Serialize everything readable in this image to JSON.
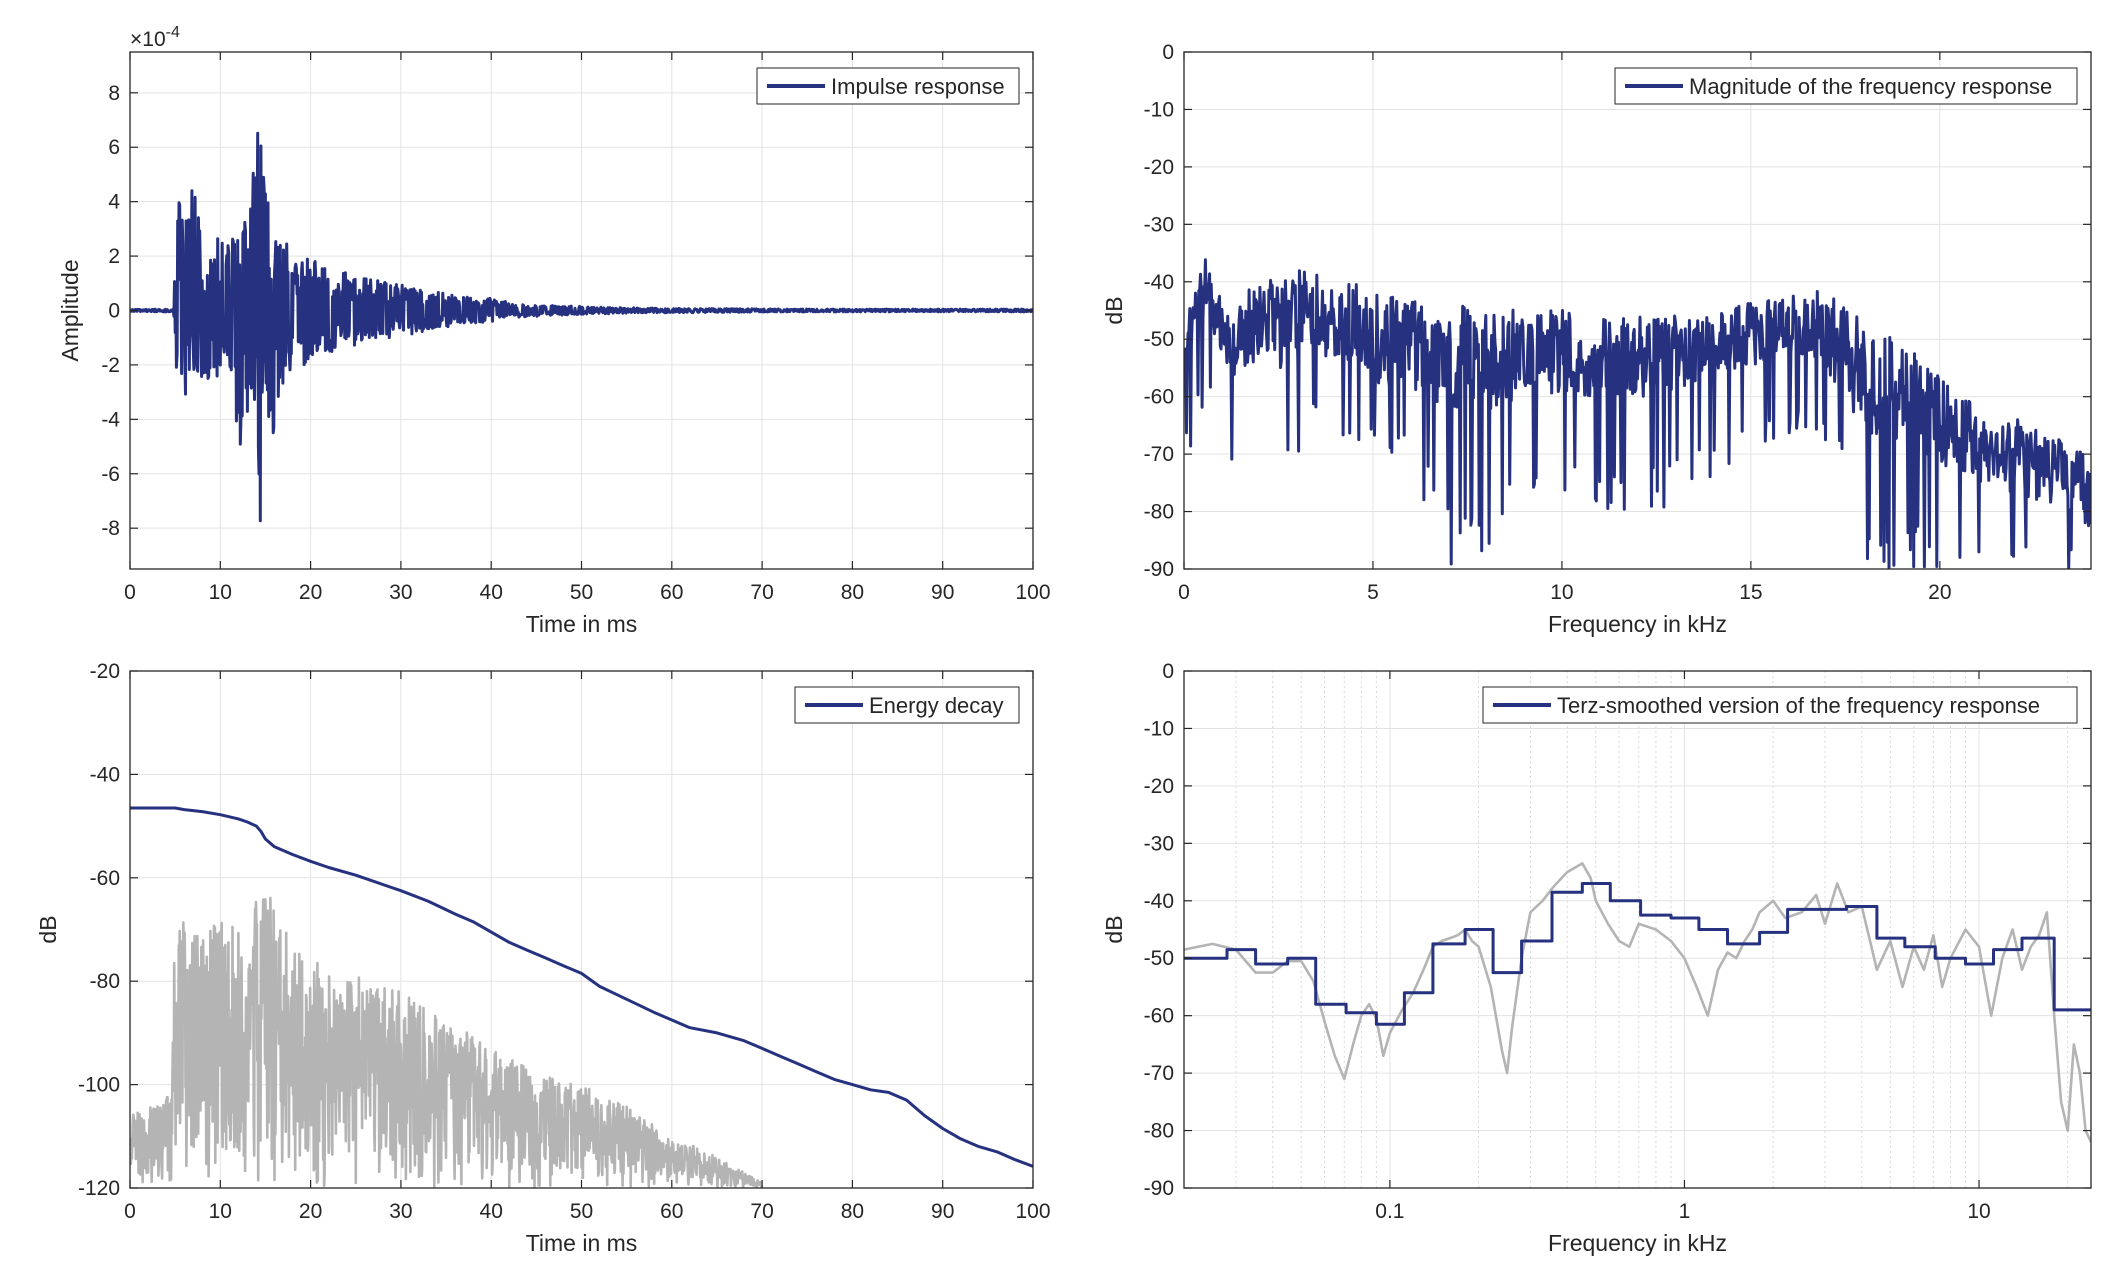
{
  "colors": {
    "primary": "#26317f",
    "secondary": "#b4b4b4",
    "grid": "#e3e3e3",
    "axis": "#262626"
  },
  "chart_data": [
    {
      "type": "line",
      "xlabel": "Time in ms",
      "ylabel": "Amplitude",
      "exponent": "×10",
      "exponent_power": "-4",
      "xlim": [
        0,
        100
      ],
      "ylim": [
        -9.5,
        9.5
      ],
      "xticks": [
        0,
        10,
        20,
        30,
        40,
        50,
        60,
        70,
        80,
        90,
        100
      ],
      "xtick_labels": [
        "0",
        "10",
        "20",
        "30",
        "40",
        "50",
        "60",
        "70",
        "80",
        "90",
        "100"
      ],
      "yticks": [
        -8,
        -6,
        -4,
        -2,
        0,
        2,
        4,
        6,
        8
      ],
      "ytick_labels": [
        "-8",
        "-6",
        "-4",
        "-2",
        "0",
        "2",
        "4",
        "6",
        "8"
      ],
      "grid": true,
      "legend_position": "top-right",
      "series": [
        {
          "name": "Impulse response",
          "color": "#26317f",
          "envelope": {
            "x": [
              0,
              4.8,
              5.2,
              6,
              7,
              8,
              9,
              10,
              11,
              12,
              13,
              14,
              14.5,
              15,
              16,
              17,
              18,
              20,
              22,
              25,
              28,
              31,
              34,
              37,
              40,
              43,
              46,
              50,
              55,
              60,
              70,
              80,
              90,
              100
            ],
            "upper": [
              0.05,
              0.05,
              4.4,
              3.5,
              4.7,
              2.5,
              2.4,
              3.1,
              2.4,
              3.3,
              4.5,
              7.6,
              6.5,
              4.3,
              4.0,
              2.7,
              2.0,
              1.9,
              1.6,
              1.3,
              1.1,
              0.9,
              0.7,
              0.5,
              0.45,
              0.25,
              0.2,
              0.15,
              0.1,
              0.08,
              0.06,
              0.05,
              0.05,
              0.05
            ],
            "lower": [
              -0.05,
              -0.05,
              -2.6,
              -3.6,
              -2.3,
              -2.5,
              -3.0,
              -2.3,
              -2.7,
              -5.2,
              -4.0,
              -4.2,
              -8.6,
              -6.2,
              -4.5,
              -2.6,
              -2.2,
              -1.9,
              -1.6,
              -1.3,
              -1.1,
              -0.9,
              -0.7,
              -0.5,
              -0.45,
              -0.25,
              -0.2,
              -0.15,
              -0.1,
              -0.08,
              -0.06,
              -0.05,
              -0.05,
              -0.05
            ]
          }
        }
      ]
    },
    {
      "type": "line",
      "xlabel": "Frequency in kHz",
      "ylabel": "dB",
      "xlim": [
        0,
        24
      ],
      "ylim": [
        -90,
        0
      ],
      "xticks": [
        0,
        5,
        10,
        15,
        20
      ],
      "xtick_labels": [
        "0",
        "5",
        "10",
        "15",
        "20"
      ],
      "yticks": [
        0,
        -10,
        -20,
        -30,
        -40,
        -50,
        -60,
        -70,
        -80,
        -90
      ],
      "ytick_labels": [
        "0",
        "-10",
        "-20",
        "-30",
        "-40",
        "-50",
        "-60",
        "-70",
        "-80",
        "-90"
      ],
      "grid": true,
      "legend_position": "top-right",
      "series": [
        {
          "name": "Magnitude of the frequency response",
          "color": "#26317f",
          "envelope": {
            "x": [
              0,
              0.3,
              0.5,
              1,
              1.5,
              2,
              2.5,
              3,
              3.5,
              4,
              4.5,
              5,
              6,
              7,
              8,
              9,
              10,
              11,
              12,
              13,
              14,
              15,
              16,
              16.5,
              17,
              17.5,
              18,
              19,
              20,
              21,
              22,
              23,
              24
            ],
            "upper": [
              -46,
              -38,
              -33,
              -42,
              -40,
              -37,
              -38,
              -35,
              -36,
              -40,
              -37,
              -39,
              -41,
              -42,
              -41,
              -43,
              -43,
              -44,
              -44,
              -44,
              -44,
              -42,
              -41,
              -39,
              -40,
              -41,
              -45,
              -48,
              -54,
              -60,
              -62,
              -65,
              -68
            ],
            "lower": [
              -70,
              -68,
              -62,
              -66,
              -90,
              -66,
              -72,
              -74,
              -64,
              -68,
              -70,
              -68,
              -72,
              -90,
              -88,
              -82,
              -76,
              -80,
              -82,
              -78,
              -74,
              -70,
              -68,
              -66,
              -68,
              -76,
              -90,
              -90,
              -90,
              -90,
              -90,
              -90,
              -90
            ],
            "median": [
              -56,
              -48,
              -44,
              -50,
              -56,
              -50,
              -52,
              -50,
              -48,
              -52,
              -50,
              -54,
              -55,
              -58,
              -58,
              -58,
              -56,
              -58,
              -58,
              -56,
              -54,
              -52,
              -51,
              -50,
              -52,
              -58,
              -62,
              -64,
              -68,
              -72,
              -74,
              -76,
              -80
            ]
          }
        }
      ]
    },
    {
      "type": "line",
      "xlabel": "Time in ms",
      "ylabel": "dB",
      "xlim": [
        0,
        100
      ],
      "ylim": [
        -120,
        -20
      ],
      "xticks": [
        0,
        10,
        20,
        30,
        40,
        50,
        60,
        70,
        80,
        90,
        100
      ],
      "xtick_labels": [
        "0",
        "10",
        "20",
        "30",
        "40",
        "50",
        "60",
        "70",
        "80",
        "90",
        "100"
      ],
      "yticks": [
        -20,
        -40,
        -60,
        -80,
        -100,
        -120
      ],
      "ytick_labels": [
        "-20",
        "-40",
        "-60",
        "-80",
        "-100",
        "-120"
      ],
      "grid": true,
      "legend_position": "top-right",
      "series": [
        {
          "name": "Energy decay",
          "color": "#26317f",
          "x": [
            0,
            2,
            4,
            5,
            6,
            8,
            10,
            12,
            13,
            14,
            14.5,
            15,
            16,
            18,
            20,
            22,
            25,
            28,
            30,
            33,
            36,
            38,
            40,
            42,
            44,
            46,
            48,
            50,
            52,
            55,
            58,
            60,
            62,
            65,
            68,
            70,
            72,
            74,
            76,
            78,
            80,
            82,
            84,
            86,
            88,
            90,
            92,
            94,
            96,
            98,
            100
          ],
          "values": [
            -46.5,
            -46.5,
            -46.5,
            -46.5,
            -46.8,
            -47.2,
            -47.8,
            -48.6,
            -49.2,
            -50.0,
            -51.0,
            -52.5,
            -54.0,
            -55.5,
            -56.8,
            -58.0,
            -59.5,
            -61.3,
            -62.5,
            -64.5,
            -67.0,
            -68.5,
            -70.5,
            -72.5,
            -74.0,
            -75.5,
            -77.0,
            -78.5,
            -81.0,
            -83.5,
            -86.0,
            -87.5,
            -89.0,
            -90.0,
            -91.5,
            -93.0,
            -94.5,
            -96.0,
            -97.5,
            -99.0,
            -100.0,
            -101.0,
            -101.5,
            -103.0,
            -106.0,
            -108.5,
            -110.5,
            -112.0,
            -113.0,
            -114.5,
            -115.8
          ]
        },
        {
          "name": "",
          "color": "#b4b4b4",
          "envelope": {
            "x": [
              0,
              4.5,
              5,
              8,
              10,
              12,
              14,
              15,
              18,
              20,
              25,
              30,
              35,
              40,
              45,
              50,
              55,
              60,
              65,
              70
            ],
            "upper": [
              -106,
              -102,
              -67,
              -70,
              -68,
              -70,
              -64,
              -62,
              -72,
              -75,
              -79,
              -82,
              -88,
              -92,
              -98,
              -100,
              -104,
              -110,
              -114,
              -119
            ],
            "lower": [
              -120,
              -120,
              -120,
              -120,
              -120,
              -120,
              -120,
              -120,
              -120,
              -120,
              -120,
              -120,
              -120,
              -120,
              -120,
              -120,
              -120,
              -120,
              -120,
              -120
            ]
          }
        }
      ]
    },
    {
      "type": "line",
      "xlabel": "Frequency in kHz",
      "ylabel": "dB",
      "xscale": "log",
      "xlim": [
        0.02,
        24
      ],
      "ylim": [
        -90,
        0
      ],
      "xticks": [
        0.1,
        1,
        10
      ],
      "xtick_labels": [
        "0.1",
        "1",
        "10"
      ],
      "yticks": [
        0,
        -10,
        -20,
        -30,
        -40,
        -50,
        -60,
        -70,
        -80,
        -90
      ],
      "ytick_labels": [
        "0",
        "-10",
        "-20",
        "-30",
        "-40",
        "-50",
        "-60",
        "-70",
        "-80",
        "-90"
      ],
      "grid": true,
      "legend_position": "top-right",
      "series": [
        {
          "name": "Terz-smoothed version of the frequency response",
          "color": "#26317f",
          "steps": {
            "edges": [
              0.02,
              0.028,
              0.035,
              0.045,
              0.056,
              0.071,
              0.09,
              0.112,
              0.14,
              0.18,
              0.224,
              0.28,
              0.355,
              0.45,
              0.56,
              0.71,
              0.9,
              1.12,
              1.4,
              1.8,
              2.24,
              2.8,
              3.55,
              4.5,
              5.6,
              7.1,
              9,
              11.2,
              14,
              18,
              24
            ],
            "values": [
              -50,
              -48.5,
              -51,
              -50,
              -58,
              -59.5,
              -61.5,
              -56,
              -47.5,
              -45,
              -52.5,
              -47,
              -38.5,
              -37,
              -40,
              -42.5,
              -43,
              -45,
              -47.5,
              -45.5,
              -41.5,
              -41.5,
              -41,
              -46.5,
              -48,
              -50,
              -51,
              -48.5,
              -46.5,
              -59,
              -59
            ]
          }
        },
        {
          "name": "",
          "color": "#b4b4b4",
          "x": [
            0.02,
            0.025,
            0.03,
            0.035,
            0.04,
            0.045,
            0.05,
            0.055,
            0.06,
            0.065,
            0.07,
            0.075,
            0.08,
            0.085,
            0.09,
            0.095,
            0.1,
            0.11,
            0.12,
            0.13,
            0.14,
            0.15,
            0.16,
            0.17,
            0.18,
            0.19,
            0.2,
            0.22,
            0.24,
            0.25,
            0.26,
            0.28,
            0.3,
            0.33,
            0.36,
            0.4,
            0.45,
            0.48,
            0.5,
            0.55,
            0.6,
            0.65,
            0.7,
            0.8,
            0.9,
            1.0,
            1.1,
            1.2,
            1.3,
            1.4,
            1.5,
            1.6,
            1.7,
            1.8,
            2.0,
            2.2,
            2.5,
            2.8,
            3.0,
            3.3,
            3.6,
            4.0,
            4.5,
            5.0,
            5.5,
            6.0,
            6.5,
            7.0,
            7.5,
            8.0,
            9.0,
            10,
            11,
            12,
            13,
            14,
            15,
            16,
            17,
            18,
            19,
            20,
            21,
            22,
            23,
            24
          ],
          "values": [
            -48.5,
            -47.5,
            -48.5,
            -52.5,
            -52.5,
            -50.5,
            -50.5,
            -54,
            -61,
            -67,
            -71,
            -65,
            -60,
            -58,
            -60.5,
            -67,
            -63,
            -59,
            -56,
            -52,
            -48,
            -47,
            -46.5,
            -46,
            -45,
            -47,
            -48,
            -55,
            -66,
            -70,
            -62,
            -50,
            -42,
            -40,
            -37.5,
            -35,
            -33.5,
            -36,
            -40,
            -44,
            -47,
            -48,
            -44,
            -45,
            -47,
            -50,
            -55,
            -60,
            -52,
            -49,
            -50,
            -47,
            -45,
            -42,
            -40,
            -43,
            -42,
            -39,
            -44,
            -37,
            -42,
            -41,
            -52,
            -47,
            -55,
            -48,
            -52,
            -46,
            -55,
            -50,
            -45,
            -48,
            -60,
            -50,
            -45,
            -52,
            -48,
            -46,
            -42,
            -60,
            -75,
            -80,
            -65,
            -70,
            -80,
            -82
          ]
        }
      ]
    }
  ]
}
